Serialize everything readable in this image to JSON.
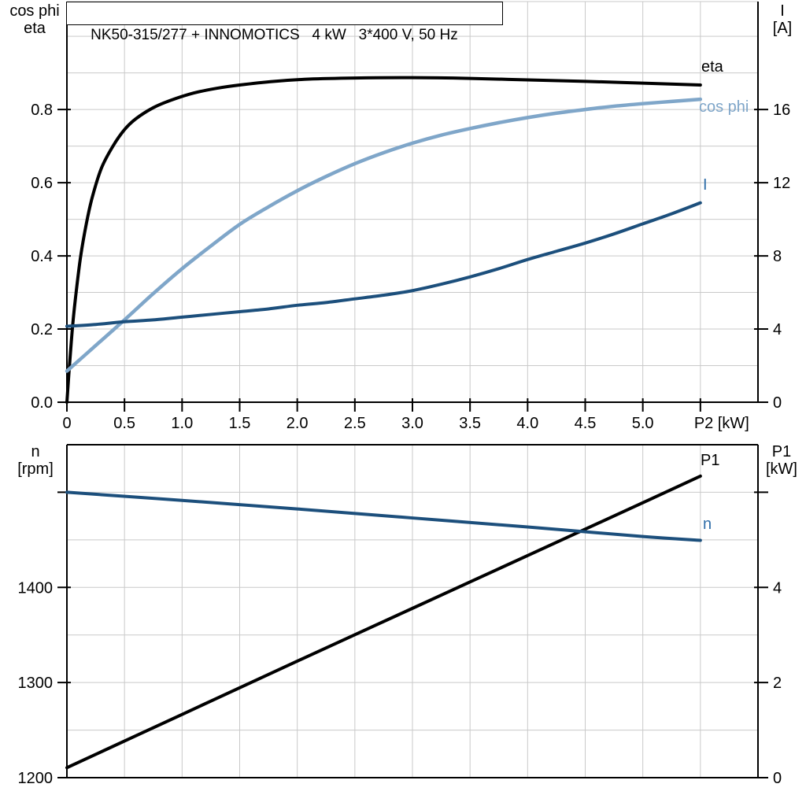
{
  "title": "NK50-315/277 + INNOMOTICS   4 kW   3*400 V, 50 Hz",
  "colors": {
    "black": "#000000",
    "cos_phi_blue": "#7FA6C9",
    "dark_blue": "#1C4F7C",
    "label_blue": "#2E6DA8",
    "grid": "#C9C9C9",
    "border": "#000000",
    "background": "#ffffff"
  },
  "axis_corner_labels": {
    "top_left": "cos phi\neta",
    "top_right": "I\n[A]",
    "bottom_left": "n\n[rpm]",
    "bottom_right": "P1\n[kW]"
  },
  "curve_labels": {
    "eta": "eta",
    "cos_phi": "cos phi",
    "current": "I",
    "p1": "P1",
    "speed": "n"
  },
  "chart_data": [
    {
      "id": "top",
      "type": "line",
      "title": "Motor efficiency, power factor and current vs shaft power",
      "xlabel": "P2 [kW]",
      "x_axis": {
        "min": 0,
        "max": 6,
        "grid": [
          0.5,
          1.0,
          1.5,
          2.0,
          2.5,
          3.0,
          3.5,
          4.0,
          4.5,
          5.0,
          5.5
        ],
        "ticks": [
          {
            "v": 0,
            "label": "0"
          },
          {
            "v": 0.5,
            "label": "0.5"
          },
          {
            "v": 1.0,
            "label": "1.0"
          },
          {
            "v": 1.5,
            "label": "1.5"
          },
          {
            "v": 2.0,
            "label": "2.0"
          },
          {
            "v": 2.5,
            "label": "2.5"
          },
          {
            "v": 3.0,
            "label": "3.0"
          },
          {
            "v": 3.5,
            "label": "3.5"
          },
          {
            "v": 4.0,
            "label": "4.0"
          },
          {
            "v": 4.5,
            "label": "4.5"
          },
          {
            "v": 5.0,
            "label": "5.0"
          },
          {
            "v": 5.5,
            "label": "P2 [kW]",
            "dx": 27
          }
        ]
      },
      "left_axis": {
        "label": "cos phi / eta",
        "min": 0,
        "max": 1.095,
        "grid": [
          0.1,
          0.2,
          0.3,
          0.4,
          0.5,
          0.6,
          0.7,
          0.8,
          0.9,
          1.0
        ],
        "ticks": [
          {
            "v": 0.0,
            "label": "0.0"
          },
          {
            "v": 0.2,
            "label": "0.2"
          },
          {
            "v": 0.4,
            "label": "0.4"
          },
          {
            "v": 0.6,
            "label": "0.6"
          },
          {
            "v": 0.8,
            "label": "0.8"
          }
        ]
      },
      "right_axis": {
        "label": "I [A]",
        "min": 0,
        "max": 21.9,
        "to_left": {
          "m": 0.05,
          "b": 0
        },
        "ticks": [
          {
            "v": 0,
            "label": "0"
          },
          {
            "v": 4,
            "label": "4"
          },
          {
            "v": 8,
            "label": "8"
          },
          {
            "v": 12,
            "label": "12"
          },
          {
            "v": 16,
            "label": "16"
          }
        ]
      },
      "series": [
        {
          "name": "eta",
          "axis": "left",
          "color": "black",
          "width": 4,
          "points": [
            [
              0,
              0
            ],
            [
              0.02,
              0.09
            ],
            [
              0.05,
              0.21
            ],
            [
              0.08,
              0.3
            ],
            [
              0.12,
              0.4
            ],
            [
              0.17,
              0.49
            ],
            [
              0.22,
              0.56
            ],
            [
              0.3,
              0.64
            ],
            [
              0.4,
              0.7
            ],
            [
              0.5,
              0.745
            ],
            [
              0.6,
              0.775
            ],
            [
              0.75,
              0.805
            ],
            [
              0.9,
              0.825
            ],
            [
              1.1,
              0.845
            ],
            [
              1.3,
              0.858
            ],
            [
              1.5,
              0.867
            ],
            [
              1.8,
              0.877
            ],
            [
              2.1,
              0.883
            ],
            [
              2.5,
              0.886
            ],
            [
              3.0,
              0.887
            ],
            [
              3.5,
              0.885
            ],
            [
              4.0,
              0.881
            ],
            [
              4.5,
              0.877
            ],
            [
              5.0,
              0.872
            ],
            [
              5.5,
              0.867
            ]
          ]
        },
        {
          "name": "cos phi",
          "axis": "left",
          "color": "cos_phi_blue",
          "width": 4.5,
          "points": [
            [
              0,
              0.085
            ],
            [
              0.25,
              0.155
            ],
            [
              0.5,
              0.225
            ],
            [
              0.75,
              0.297
            ],
            [
              1.0,
              0.365
            ],
            [
              1.25,
              0.427
            ],
            [
              1.5,
              0.486
            ],
            [
              1.75,
              0.534
            ],
            [
              2.0,
              0.578
            ],
            [
              2.25,
              0.617
            ],
            [
              2.5,
              0.652
            ],
            [
              2.75,
              0.682
            ],
            [
              3.0,
              0.708
            ],
            [
              3.25,
              0.73
            ],
            [
              3.5,
              0.748
            ],
            [
              3.75,
              0.764
            ],
            [
              4.0,
              0.778
            ],
            [
              4.25,
              0.79
            ],
            [
              4.5,
              0.8
            ],
            [
              4.75,
              0.809
            ],
            [
              5.0,
              0.816
            ],
            [
              5.25,
              0.822
            ],
            [
              5.5,
              0.828
            ]
          ]
        },
        {
          "name": "I",
          "axis": "right",
          "color": "dark_blue",
          "width": 4,
          "points": [
            [
              0,
              4.15
            ],
            [
              0.25,
              4.25
            ],
            [
              0.5,
              4.4
            ],
            [
              0.75,
              4.5
            ],
            [
              1.0,
              4.65
            ],
            [
              1.25,
              4.8
            ],
            [
              1.5,
              4.95
            ],
            [
              1.75,
              5.1
            ],
            [
              2.0,
              5.3
            ],
            [
              2.25,
              5.45
            ],
            [
              2.5,
              5.65
            ],
            [
              2.75,
              5.85
            ],
            [
              3.0,
              6.1
            ],
            [
              3.25,
              6.45
            ],
            [
              3.5,
              6.85
            ],
            [
              3.75,
              7.3
            ],
            [
              4.0,
              7.8
            ],
            [
              4.25,
              8.25
            ],
            [
              4.5,
              8.7
            ],
            [
              4.75,
              9.2
            ],
            [
              5.0,
              9.75
            ],
            [
              5.25,
              10.3
            ],
            [
              5.5,
              10.9
            ]
          ]
        }
      ]
    },
    {
      "id": "bottom",
      "type": "line",
      "title": "Motor speed and input power vs shaft power",
      "xlabel": "P2 [kW]",
      "x_axis": {
        "min": 0,
        "max": 6,
        "grid": [
          0.5,
          1.0,
          1.5,
          2.0,
          2.5,
          3.0,
          3.5,
          4.0,
          4.5,
          5.0,
          5.5
        ],
        "ticks": []
      },
      "left_axis": {
        "label": "n [rpm]",
        "min": 1200,
        "max": 1550,
        "grid": [
          1250,
          1300,
          1350,
          1400,
          1450,
          1500
        ],
        "ticks": [
          {
            "v": 1200,
            "label": "1200"
          },
          {
            "v": 1300,
            "label": "1300"
          },
          {
            "v": 1400,
            "label": "1400"
          },
          {
            "v": 1500,
            "label": ""
          }
        ]
      },
      "right_axis": {
        "label": "P1 [kW]",
        "min": 0,
        "max": 7,
        "to_left": {
          "m": 50,
          "b": 1200
        },
        "ticks": [
          {
            "v": 0,
            "label": "0"
          },
          {
            "v": 2,
            "label": "2"
          },
          {
            "v": 4,
            "label": "4"
          },
          {
            "v": 6,
            "label": ""
          }
        ]
      },
      "series": [
        {
          "name": "P1",
          "axis": "right",
          "color": "black",
          "width": 4,
          "points": [
            [
              0,
              0.21
            ],
            [
              1.0,
              1.33
            ],
            [
              2.0,
              2.45
            ],
            [
              3.0,
              3.56
            ],
            [
              4.0,
              4.67
            ],
            [
              5.0,
              5.78
            ],
            [
              5.5,
              6.34
            ]
          ]
        },
        {
          "name": "n",
          "axis": "left",
          "color": "dark_blue",
          "width": 4,
          "points": [
            [
              0,
              1500
            ],
            [
              1.0,
              1491.5
            ],
            [
              2.0,
              1482.5
            ],
            [
              3.0,
              1473
            ],
            [
              4.0,
              1463.5
            ],
            [
              5.0,
              1453.5
            ],
            [
              5.5,
              1449.5
            ]
          ]
        }
      ]
    }
  ]
}
